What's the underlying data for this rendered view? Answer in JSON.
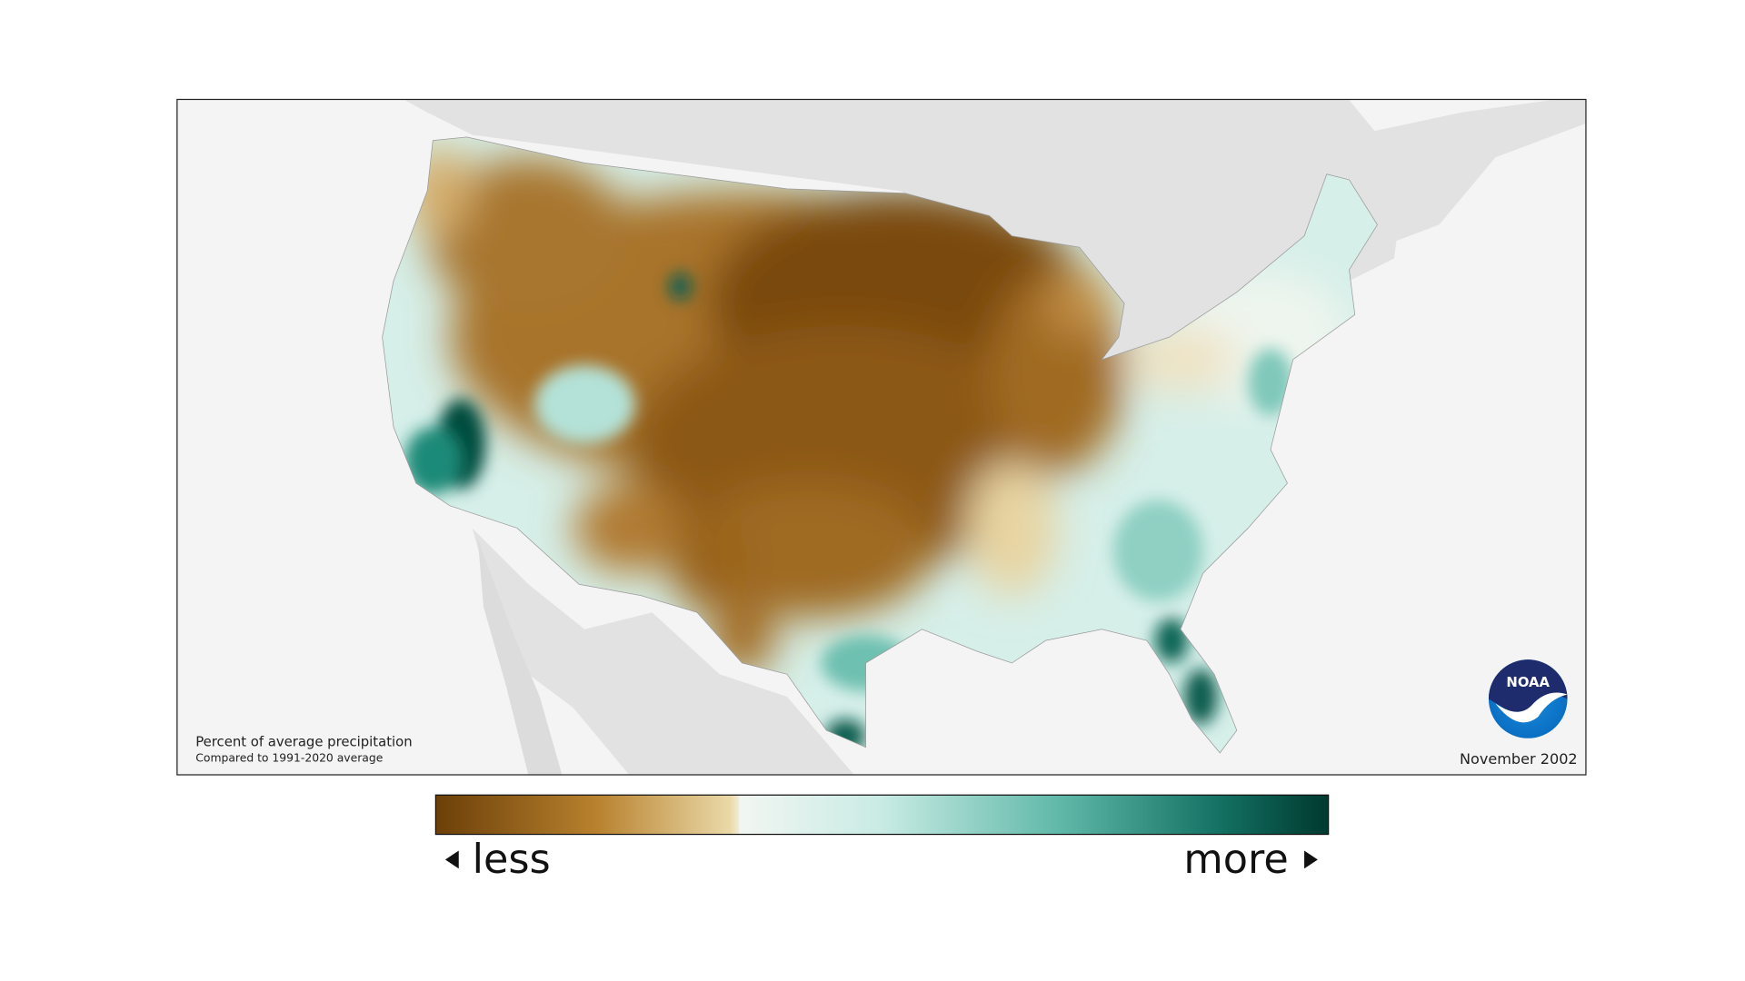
{
  "map": {
    "caption_title": "Percent of average precipitation",
    "caption_subtitle": "Compared to 1991-2020 average",
    "date": "November 2002",
    "logo": "NOAA"
  },
  "legend": {
    "low_label": "less",
    "high_label": "more"
  }
}
